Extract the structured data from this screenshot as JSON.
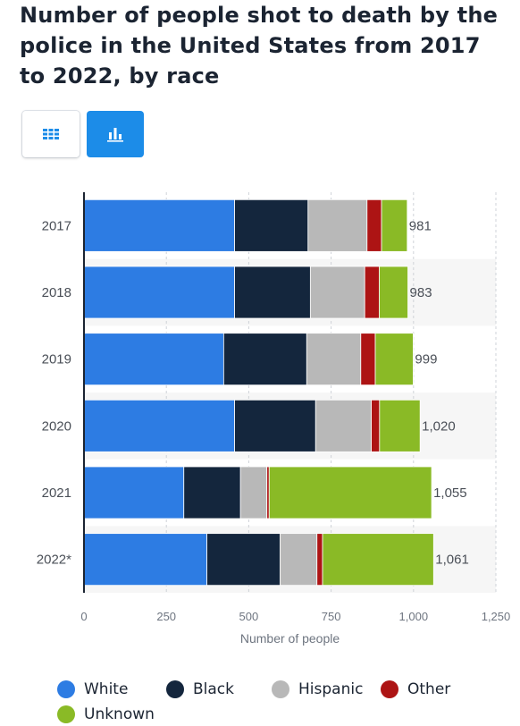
{
  "header": {
    "title": "Number of people shot to death by the police in the United States from 2017 to 2022, by race"
  },
  "view_toggle": {
    "table_icon": "grid-icon",
    "chart_icon": "bar-chart-icon",
    "active": "chart",
    "active_color": "#1c8ce8"
  },
  "chart_data": {
    "type": "bar",
    "orientation": "horizontal",
    "stacked": true,
    "title": "Number of people shot to death by the police in the United States from 2017 to 2022, by race",
    "xlabel": "Number of people",
    "ylabel": "",
    "xlim": [
      0,
      1250
    ],
    "xticks": [
      0,
      250,
      500,
      750,
      1000,
      1250
    ],
    "xtick_labels": [
      "0",
      "250",
      "500",
      "750",
      "1,000",
      "1,250"
    ],
    "grid": true,
    "categories": [
      "2017",
      "2018",
      "2019",
      "2020",
      "2021",
      "2022*"
    ],
    "totals": [
      981,
      983,
      999,
      1020,
      1055,
      1061
    ],
    "total_labels": [
      "981",
      "983",
      "999",
      "1,020",
      "1,055",
      "1,061"
    ],
    "series": [
      {
        "name": "White",
        "color": "#2d7ce3",
        "values": [
          457,
          457,
          424,
          457,
          303,
          373
        ]
      },
      {
        "name": "Black",
        "color": "#14263d",
        "values": [
          223,
          230,
          252,
          246,
          172,
          222
        ]
      },
      {
        "name": "Hispanic",
        "color": "#b8b8b8",
        "values": [
          179,
          165,
          164,
          169,
          80,
          112
        ]
      },
      {
        "name": "Other",
        "color": "#ad1414",
        "values": [
          44,
          44,
          44,
          25,
          7,
          17
        ]
      },
      {
        "name": "Unknown",
        "color": "#8aba26",
        "values": [
          78,
          87,
          115,
          123,
          493,
          337
        ]
      }
    ],
    "legend_position": "bottom"
  }
}
